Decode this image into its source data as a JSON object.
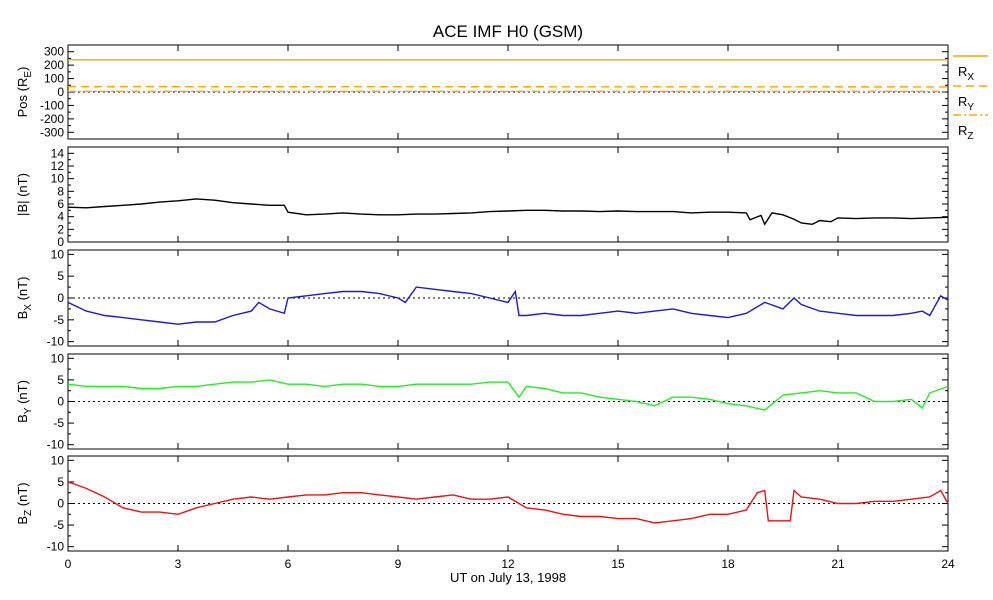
{
  "chart_data": {
    "type": "line",
    "title": "ACE IMF H0 (GSM)",
    "xlabel": "UT on July 13, 1998",
    "x_ticks": [
      "0",
      "3",
      "6",
      "9",
      "12",
      "15",
      "18",
      "21",
      "24"
    ],
    "xlim": [
      0,
      24
    ],
    "panels": [
      {
        "id": "pos",
        "ylabel_main": "Pos (R",
        "ylabel_sub": "E",
        "ylabel_tail": ")",
        "ylim": [
          -350,
          350
        ],
        "ticks": [
          -300,
          -200,
          -100,
          0,
          100,
          200,
          300
        ],
        "tick_labels": [
          "-300",
          "-200",
          "-100",
          "0",
          "100",
          "200",
          "300"
        ],
        "zero_line": true,
        "series": [
          {
            "name": "R",
            "sub": "X",
            "style": "solid",
            "color": "#ffa500",
            "x": [
              0,
              24
            ],
            "values": [
              240,
              240
            ]
          },
          {
            "name": "R",
            "sub": "Y",
            "style": "dashed",
            "color": "#ffa500",
            "x": [
              0,
              24
            ],
            "values": [
              40,
              38
            ]
          },
          {
            "name": "R",
            "sub": "Z",
            "style": "dashdot",
            "color": "#ffa500",
            "x": [
              0,
              24
            ],
            "values": [
              5,
              5
            ]
          }
        ]
      },
      {
        "id": "bmag",
        "ylabel_main": "|B| (nT)",
        "ylabel_sub": "",
        "ylabel_tail": "",
        "ylim": [
          0,
          15
        ],
        "ticks": [
          0,
          2,
          4,
          6,
          8,
          10,
          12,
          14
        ],
        "tick_labels": [
          "0",
          "2",
          "4",
          "6",
          "8",
          "10",
          "12",
          "14"
        ],
        "zero_line": false,
        "series": [
          {
            "name": "|B|",
            "color": "#000000",
            "x": [
              0,
              0.5,
              1.0,
              1.5,
              2.0,
              2.5,
              3.0,
              3.5,
              4.0,
              4.5,
              5.0,
              5.5,
              5.9,
              6.0,
              6.5,
              7.0,
              7.5,
              8.0,
              8.5,
              9.0,
              9.5,
              10.0,
              10.5,
              11.0,
              11.5,
              12.0,
              12.5,
              13.0,
              13.5,
              14.0,
              14.5,
              15.0,
              15.5,
              16.0,
              16.5,
              17.0,
              17.5,
              18.0,
              18.5,
              18.6,
              18.9,
              19.0,
              19.2,
              19.5,
              19.8,
              20.0,
              20.3,
              20.5,
              20.8,
              21.0,
              21.5,
              22.0,
              22.5,
              23.0,
              23.5,
              24.0
            ],
            "values": [
              5.5,
              5.4,
              5.6,
              5.8,
              6.0,
              6.3,
              6.5,
              6.8,
              6.6,
              6.2,
              6.0,
              5.8,
              5.8,
              4.7,
              4.3,
              4.4,
              4.6,
              4.4,
              4.3,
              4.3,
              4.4,
              4.4,
              4.5,
              4.6,
              4.8,
              4.9,
              5.0,
              5.0,
              4.9,
              4.9,
              4.8,
              4.9,
              4.8,
              4.8,
              4.8,
              4.6,
              4.7,
              4.7,
              4.6,
              3.5,
              4.2,
              2.8,
              4.6,
              4.3,
              3.6,
              3.0,
              2.8,
              3.4,
              3.2,
              3.8,
              3.7,
              3.8,
              3.8,
              3.7,
              3.8,
              3.9
            ]
          }
        ]
      },
      {
        "id": "bx",
        "ylabel_main": "B",
        "ylabel_sub": "X",
        "ylabel_tail": " (nT)",
        "ylim": [
          -11,
          11
        ],
        "ticks": [
          -10,
          -5,
          0,
          5,
          10
        ],
        "tick_labels": [
          "-10",
          "-5",
          "0",
          "5",
          "10"
        ],
        "zero_line": true,
        "series": [
          {
            "name": "B_X",
            "color": "#1a1ad8",
            "x": [
              0,
              0.5,
              1.0,
              1.5,
              2.0,
              2.5,
              3.0,
              3.5,
              4.0,
              4.5,
              5.0,
              5.2,
              5.5,
              5.9,
              6.0,
              6.5,
              7.0,
              7.5,
              8.0,
              8.5,
              9.0,
              9.2,
              9.5,
              10.0,
              10.5,
              11.0,
              11.5,
              12.0,
              12.2,
              12.3,
              12.5,
              13.0,
              13.5,
              14.0,
              14.5,
              15.0,
              15.5,
              16.0,
              16.5,
              17.0,
              17.5,
              18.0,
              18.5,
              19.0,
              19.5,
              19.8,
              20.0,
              20.5,
              21.0,
              21.5,
              22.0,
              22.5,
              23.0,
              23.3,
              23.5,
              23.8,
              24.0
            ],
            "values": [
              -1.0,
              -3.0,
              -4.0,
              -4.5,
              -5.0,
              -5.5,
              -6.0,
              -5.5,
              -5.5,
              -4.0,
              -3.0,
              -1.0,
              -2.5,
              -3.5,
              0.0,
              0.5,
              1.0,
              1.5,
              1.5,
              1.0,
              0.0,
              -1.0,
              2.5,
              2.0,
              1.5,
              1.0,
              0.0,
              -1.0,
              1.5,
              -4.0,
              -4.0,
              -3.5,
              -4.0,
              -4.0,
              -3.5,
              -3.0,
              -3.5,
              -3.0,
              -2.5,
              -3.5,
              -4.0,
              -4.5,
              -3.5,
              -1.0,
              -2.5,
              0.0,
              -1.5,
              -3.0,
              -3.5,
              -4.0,
              -4.0,
              -4.0,
              -3.5,
              -3.0,
              -4.0,
              0.5,
              -0.5
            ]
          }
        ]
      },
      {
        "id": "by",
        "ylabel_main": "B",
        "ylabel_sub": "Y",
        "ylabel_tail": " (nT)",
        "ylim": [
          -11,
          11
        ],
        "ticks": [
          -10,
          -5,
          0,
          5,
          10
        ],
        "tick_labels": [
          "-10",
          "-5",
          "0",
          "5",
          "10"
        ],
        "zero_line": true,
        "series": [
          {
            "name": "B_Y",
            "color": "#22ee22",
            "x": [
              0,
              0.5,
              1.0,
              1.5,
              2.0,
              2.5,
              3.0,
              3.5,
              4.0,
              4.5,
              5.0,
              5.5,
              6.0,
              6.5,
              7.0,
              7.5,
              8.0,
              8.5,
              9.0,
              9.5,
              10.0,
              10.5,
              11.0,
              11.5,
              12.0,
              12.3,
              12.5,
              13.0,
              13.5,
              14.0,
              14.5,
              15.0,
              15.5,
              16.0,
              16.5,
              17.0,
              17.5,
              18.0,
              18.5,
              19.0,
              19.5,
              20.0,
              20.5,
              21.0,
              21.5,
              22.0,
              22.5,
              23.0,
              23.3,
              23.5,
              24.0
            ],
            "values": [
              4.0,
              3.5,
              3.5,
              3.5,
              3.0,
              3.0,
              3.5,
              3.5,
              4.0,
              4.5,
              4.5,
              5.0,
              4.0,
              4.0,
              3.5,
              4.0,
              4.0,
              3.5,
              3.5,
              4.0,
              4.0,
              4.0,
              4.0,
              4.5,
              4.5,
              1.0,
              3.5,
              3.0,
              2.0,
              2.0,
              1.0,
              0.5,
              0.0,
              -1.0,
              1.0,
              1.0,
              0.5,
              -0.5,
              -1.0,
              -2.0,
              1.5,
              2.0,
              2.5,
              2.0,
              2.0,
              0.0,
              0.0,
              0.5,
              -1.5,
              2.0,
              3.5
            ]
          }
        ]
      },
      {
        "id": "bz",
        "ylabel_main": "B",
        "ylabel_sub": "Z",
        "ylabel_tail": " (nT)",
        "ylim": [
          -11,
          11
        ],
        "ticks": [
          -10,
          -5,
          0,
          5,
          10
        ],
        "tick_labels": [
          "-10",
          "-5",
          "0",
          "5",
          "10"
        ],
        "zero_line": true,
        "series": [
          {
            "name": "B_Z",
            "color": "#ee1111",
            "x": [
              0,
              0.5,
              1.0,
              1.5,
              2.0,
              2.5,
              3.0,
              3.5,
              4.0,
              4.5,
              5.0,
              5.5,
              6.0,
              6.5,
              7.0,
              7.5,
              8.0,
              8.5,
              9.0,
              9.5,
              10.0,
              10.5,
              11.0,
              11.5,
              12.0,
              12.5,
              13.0,
              13.5,
              14.0,
              14.5,
              15.0,
              15.5,
              16.0,
              16.5,
              17.0,
              17.5,
              18.0,
              18.5,
              18.8,
              19.0,
              19.1,
              19.5,
              19.7,
              19.8,
              20.0,
              20.5,
              21.0,
              21.5,
              22.0,
              22.5,
              23.0,
              23.5,
              23.8,
              24.0
            ],
            "values": [
              5.0,
              3.5,
              1.5,
              -1.0,
              -2.0,
              -2.0,
              -2.5,
              -1.0,
              0.0,
              1.0,
              1.5,
              1.0,
              1.5,
              2.0,
              2.0,
              2.5,
              2.5,
              2.0,
              1.5,
              1.0,
              1.5,
              2.0,
              1.0,
              1.0,
              1.5,
              -1.0,
              -1.5,
              -2.5,
              -3.0,
              -3.0,
              -3.5,
              -3.5,
              -4.5,
              -4.0,
              -3.5,
              -2.5,
              -2.5,
              -1.5,
              2.5,
              3.0,
              -4.0,
              -4.0,
              -4.0,
              3.0,
              1.5,
              1.0,
              0.0,
              0.0,
              0.5,
              0.5,
              1.0,
              1.5,
              3.0,
              0.0
            ]
          }
        ]
      }
    ]
  }
}
